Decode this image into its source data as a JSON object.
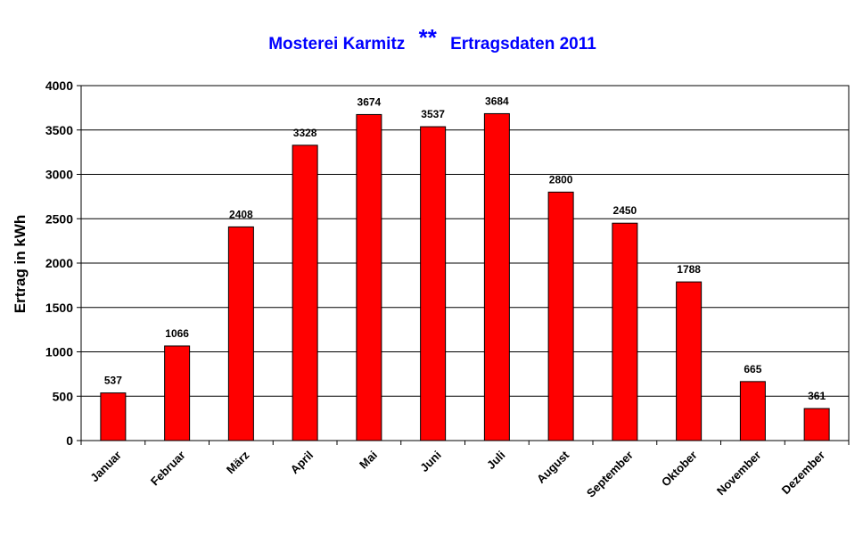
{
  "chart_data": {
    "type": "bar",
    "title_left": "Mosterei Karmitz",
    "title_sep": "**",
    "title_right": "Ertragsdaten 2011",
    "ylabel": "Ertrag in kWh",
    "xlabel": "",
    "ylim": [
      0,
      4000
    ],
    "yticks": [
      "0",
      "500",
      "1000",
      "1500",
      "2000",
      "2500",
      "3000",
      "3500",
      "4000"
    ],
    "grid": true,
    "legend": "none",
    "categories": [
      "Januar",
      "Februar",
      "März",
      "April",
      "Mai",
      "Juni",
      "Juli",
      "August",
      "September",
      "Oktober",
      "November",
      "Dezember"
    ],
    "values": [
      537,
      1066,
      2408,
      3328,
      3674,
      3537,
      3684,
      2800,
      2450,
      1788,
      665,
      361
    ],
    "data_labels": [
      "537",
      "1066",
      "2408",
      "3328",
      "3674",
      "3537",
      "3684",
      "2800",
      "2450",
      "1788",
      "665",
      "361"
    ],
    "bar_color": "#ff0000",
    "title_color": "#0000ff"
  }
}
